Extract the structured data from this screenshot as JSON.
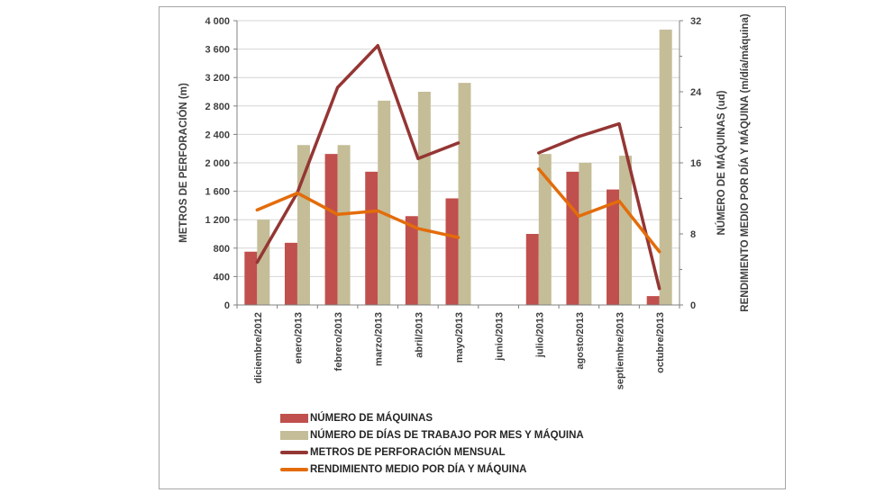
{
  "figure": {
    "background": "#ffffff",
    "border_color": "#a6a6a6"
  },
  "chart_data": {
    "type": "combo (bar + line, dual axis)",
    "categories": [
      "diciembre/2012",
      "enero/2013",
      "febrero/2013",
      "marzo/2013",
      "abril/2013",
      "mayo/2013",
      "junio/2013",
      "julio/2013",
      "agosto/2013",
      "septiembre/2013",
      "octubre/2013"
    ],
    "series": [
      {
        "key": "numero-de-maquinas",
        "name": "NÚMERO DE MÁQUINAS",
        "type": "bar",
        "axis": "right",
        "color": "#c0504d",
        "values": [
          6,
          7,
          17,
          15,
          10,
          12,
          null,
          8,
          15,
          13,
          1
        ]
      },
      {
        "key": "dias-de-trabajo",
        "name": "NÚMERO DE DÍAS DE TRABAJO POR MES Y MÁQUINA",
        "type": "bar",
        "axis": "right",
        "color": "#c4bd97",
        "values": [
          9.6,
          18,
          18,
          23,
          24,
          25,
          null,
          17,
          16,
          16.8,
          31
        ]
      },
      {
        "key": "metros-perforacion-mensual",
        "name": "METROS DE PERFORACIÓN MENSUAL",
        "type": "line",
        "axis": "left",
        "color": "#943634",
        "values": [
          600,
          1580,
          3060,
          3650,
          2060,
          2280,
          null,
          2140,
          2370,
          2550,
          230
        ]
      },
      {
        "key": "rendimiento-medio",
        "name": "RENDIMIENTO MEDIO POR DÍA Y MÁQUINA",
        "type": "line",
        "axis": "right",
        "color": "#e36c0a",
        "values": [
          10.7,
          12.6,
          10.2,
          10.6,
          8.6,
          7.6,
          null,
          15.3,
          10,
          11.7,
          6
        ]
      }
    ],
    "left_axis": {
      "title": "METROS DE PERFORACIÓN (m)",
      "min": 0,
      "max": 4000,
      "tick_step": 400,
      "tick_labels": [
        "0",
        "400",
        "800",
        "1 200",
        "1 600",
        "2 000",
        "2 400",
        "2 800",
        "3 200",
        "3 600",
        "4 000"
      ]
    },
    "right_axis": {
      "titles": [
        "NÚMERO DE MÁQUINAS (ud)",
        "RENDIMIENTO MEDIO POR DÍA Y MÁQUINA (m/día/máquina)"
      ],
      "min": 0,
      "max": 32,
      "label_step": 8,
      "minor_tick_step": 4,
      "tick_labels": [
        "0",
        "8",
        "16",
        "24",
        "32"
      ]
    },
    "grid": true,
    "gridline_color": "#d6d6d6",
    "axis_color": "#808080",
    "legend_position": "bottom-left"
  }
}
